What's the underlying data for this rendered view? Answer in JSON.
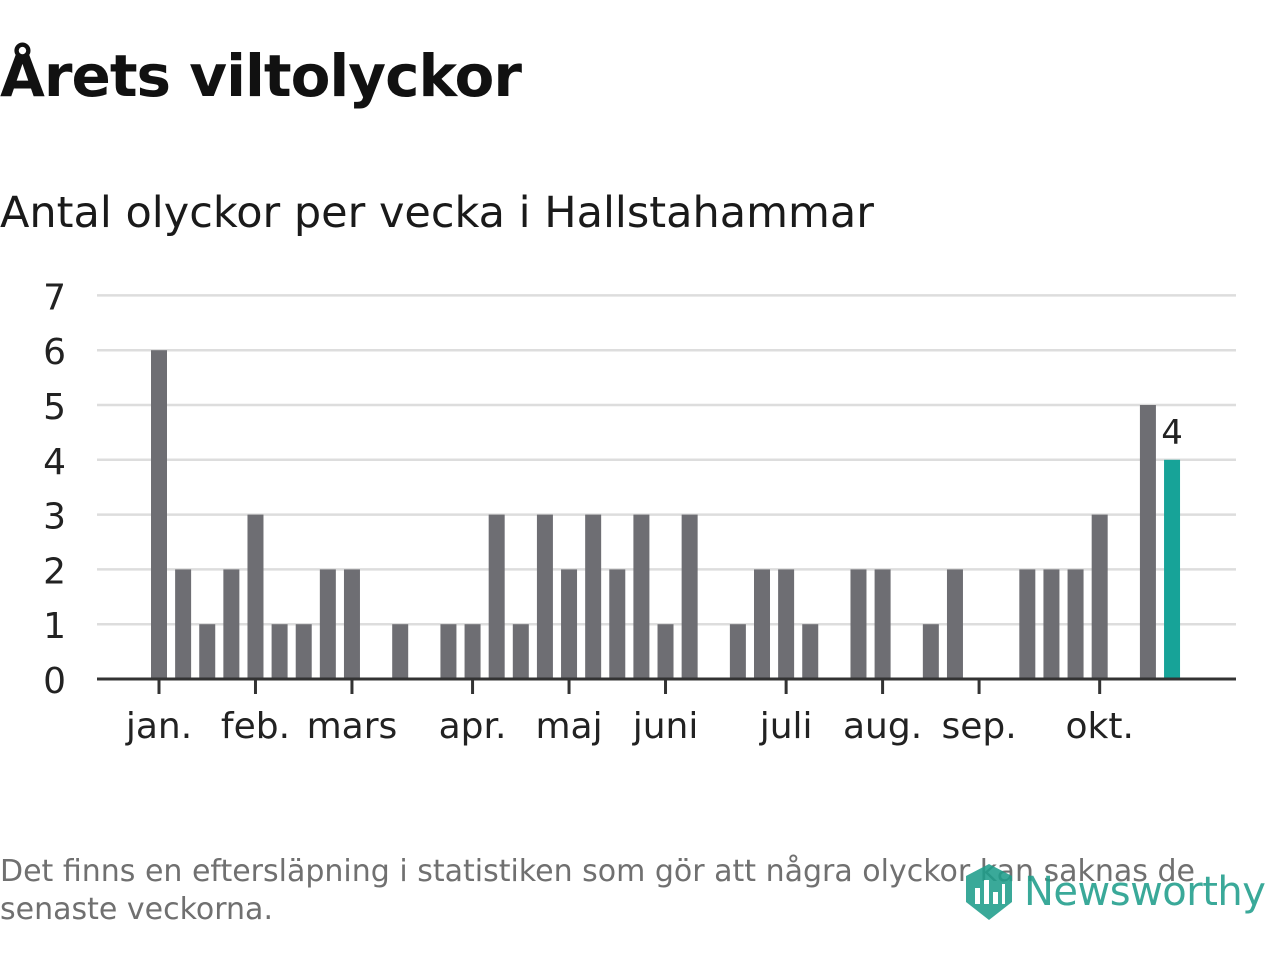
{
  "header": {
    "title": "Årets viltolyckor",
    "subtitle": "Antal olyckor per vecka i Hallstahammar"
  },
  "footer": {
    "note": "Det finns en eftersläpning i statistiken som gör att några olyckor kan saknas de senaste veckorna.",
    "brand": "Newsworthy"
  },
  "colors": {
    "bar": "#6e6e73",
    "highlight": "#17a398",
    "grid": "#dddddd",
    "axis": "#333333",
    "brand": "#1f9e8b"
  },
  "chart_data": {
    "type": "bar",
    "title": "Årets viltolyckor",
    "subtitle": "Antal olyckor per vecka i Hallstahammar",
    "xlabel": "",
    "ylabel": "",
    "ylim": [
      0,
      7
    ],
    "yticks": [
      0,
      1,
      2,
      3,
      4,
      5,
      6,
      7
    ],
    "grid": true,
    "unit": "olyckor per vecka",
    "weeks": [
      1,
      2,
      3,
      4,
      5,
      6,
      7,
      8,
      9,
      10,
      11,
      12,
      13,
      14,
      15,
      16,
      17,
      18,
      19,
      20,
      21,
      22,
      23,
      24,
      25,
      26,
      27,
      28,
      29,
      30,
      31,
      32,
      33,
      34,
      35,
      36,
      37,
      38,
      39,
      40,
      41,
      42,
      43,
      44
    ],
    "values": [
      6,
      2,
      1,
      2,
      3,
      1,
      1,
      2,
      2,
      0,
      1,
      0,
      1,
      1,
      3,
      1,
      3,
      2,
      3,
      2,
      3,
      1,
      3,
      0,
      1,
      2,
      2,
      1,
      0,
      2,
      2,
      0,
      1,
      2,
      0,
      0,
      2,
      2,
      2,
      3,
      0,
      5,
      4,
      0
    ],
    "highlight_index": 42,
    "highlight_label": "4",
    "month_ticks": [
      {
        "label": "jan.",
        "week": 1
      },
      {
        "label": "feb.",
        "week": 5
      },
      {
        "label": "mars",
        "week": 9
      },
      {
        "label": "apr.",
        "week": 14
      },
      {
        "label": "maj",
        "week": 18
      },
      {
        "label": "juni",
        "week": 22
      },
      {
        "label": "juli",
        "week": 27
      },
      {
        "label": "aug.",
        "week": 31
      },
      {
        "label": "sep.",
        "week": 35
      },
      {
        "label": "okt.",
        "week": 40
      }
    ]
  }
}
